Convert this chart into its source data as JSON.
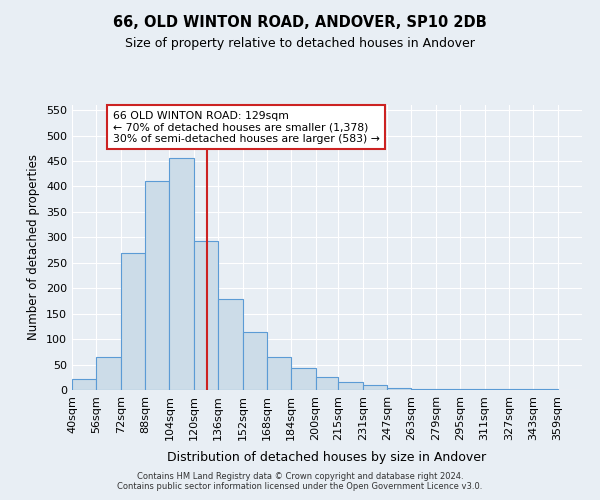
{
  "title": "66, OLD WINTON ROAD, ANDOVER, SP10 2DB",
  "subtitle": "Size of property relative to detached houses in Andover",
  "xlabel": "Distribution of detached houses by size in Andover",
  "ylabel": "Number of detached properties",
  "bin_labels": [
    "40sqm",
    "56sqm",
    "72sqm",
    "88sqm",
    "104sqm",
    "120sqm",
    "136sqm",
    "152sqm",
    "168sqm",
    "184sqm",
    "200sqm",
    "215sqm",
    "231sqm",
    "247sqm",
    "263sqm",
    "279sqm",
    "295sqm",
    "311sqm",
    "327sqm",
    "343sqm",
    "359sqm"
  ],
  "bar_values": [
    22,
    65,
    270,
    410,
    455,
    293,
    178,
    113,
    65,
    43,
    25,
    15,
    10,
    3,
    2,
    2,
    2,
    1,
    1,
    1
  ],
  "bar_left_edges": [
    40,
    56,
    72,
    88,
    104,
    120,
    136,
    152,
    168,
    184,
    200,
    215,
    231,
    247,
    263,
    279,
    295,
    311,
    327,
    343
  ],
  "bar_color": "#ccdce8",
  "bar_edge_color": "#5b9bd5",
  "vline_x": 129,
  "vline_color": "#cc2222",
  "annotation_title": "66 OLD WINTON ROAD: 129sqm",
  "annotation_line1": "← 70% of detached houses are smaller (1,378)",
  "annotation_line2": "30% of semi-detached houses are larger (583) →",
  "annotation_box_facecolor": "#ffffff",
  "annotation_box_edgecolor": "#cc2222",
  "ylim": [
    0,
    560
  ],
  "yticks": [
    0,
    50,
    100,
    150,
    200,
    250,
    300,
    350,
    400,
    450,
    500,
    550
  ],
  "background_color": "#e8eef4",
  "grid_color": "#ffffff",
  "footer1": "Contains HM Land Registry data © Crown copyright and database right 2024.",
  "footer2": "Contains public sector information licensed under the Open Government Licence v3.0."
}
